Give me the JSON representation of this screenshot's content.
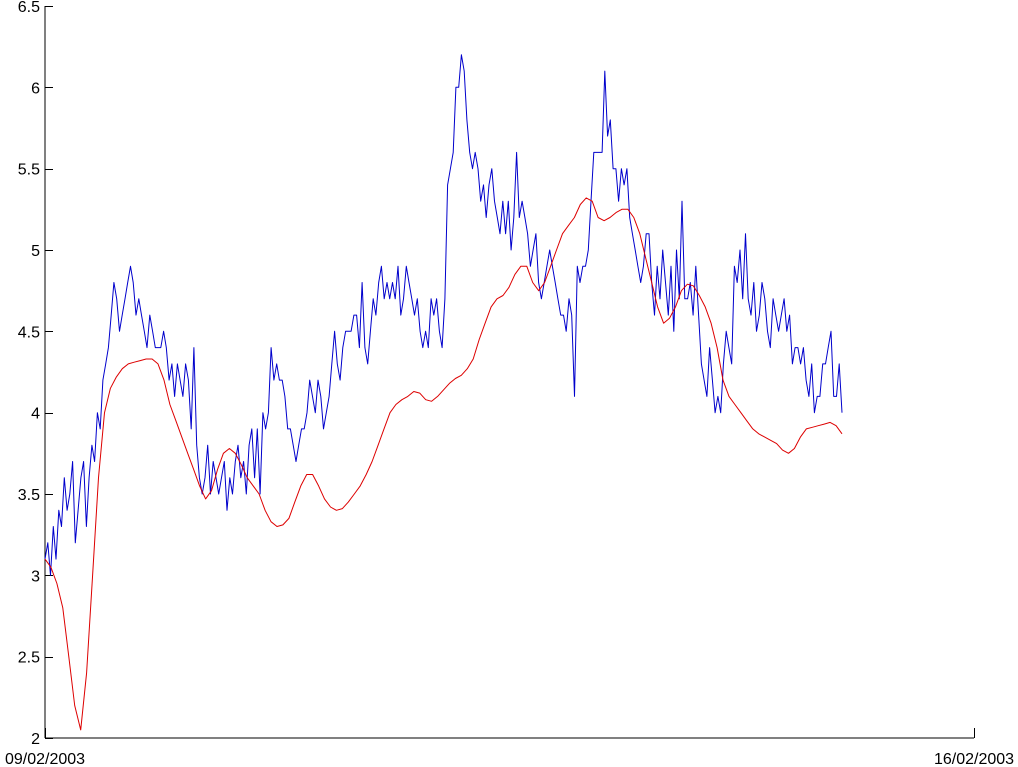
{
  "chart_data": {
    "type": "line",
    "title": "",
    "xlabel": "",
    "ylabel": "",
    "xlim": [
      "09/02/2003",
      "16/02/2003"
    ],
    "ylim": [
      2,
      6.5
    ],
    "x_ticks": [
      "09/02/2003",
      "16/02/2003"
    ],
    "y_ticks": [
      "2",
      "2.5",
      "3",
      "3.5",
      "4",
      "4.5",
      "5",
      "5.5",
      "6",
      "6.5"
    ],
    "grid": false,
    "legend": "none",
    "series": [
      {
        "color": "#0000cc",
        "values": [
          3.1,
          3.2,
          3.0,
          3.3,
          3.1,
          3.4,
          3.3,
          3.6,
          3.4,
          3.5,
          3.7,
          3.2,
          3.4,
          3.6,
          3.7,
          3.3,
          3.6,
          3.8,
          3.7,
          4.0,
          3.9,
          4.2,
          4.3,
          4.4,
          4.6,
          4.8,
          4.7,
          4.5,
          4.6,
          4.7,
          4.8,
          4.9,
          4.8,
          4.6,
          4.7,
          4.6,
          4.5,
          4.4,
          4.6,
          4.5,
          4.4,
          4.4,
          4.4,
          4.5,
          4.4,
          4.2,
          4.3,
          4.1,
          4.3,
          4.2,
          4.1,
          4.3,
          4.2,
          3.9,
          4.4,
          3.8,
          3.6,
          3.5,
          3.6,
          3.8,
          3.5,
          3.7,
          3.6,
          3.5,
          3.6,
          3.7,
          3.4,
          3.6,
          3.5,
          3.7,
          3.8,
          3.6,
          3.7,
          3.5,
          3.8,
          3.9,
          3.6,
          3.9,
          3.5,
          4.0,
          3.9,
          4.0,
          4.4,
          4.2,
          4.3,
          4.2,
          4.2,
          4.1,
          3.9,
          3.9,
          3.8,
          3.7,
          3.8,
          3.9,
          3.9,
          4.0,
          4.2,
          4.1,
          4.0,
          4.2,
          4.1,
          3.9,
          4.0,
          4.1,
          4.3,
          4.5,
          4.3,
          4.2,
          4.4,
          4.5,
          4.5,
          4.5,
          4.6,
          4.6,
          4.4,
          4.8,
          4.4,
          4.3,
          4.5,
          4.7,
          4.6,
          4.8,
          4.9,
          4.7,
          4.8,
          4.7,
          4.8,
          4.7,
          4.9,
          4.6,
          4.7,
          4.9,
          4.8,
          4.7,
          4.6,
          4.7,
          4.5,
          4.4,
          4.5,
          4.4,
          4.7,
          4.6,
          4.7,
          4.5,
          4.4,
          4.7,
          5.4,
          5.5,
          5.6,
          6.0,
          6.0,
          6.2,
          6.1,
          5.8,
          5.6,
          5.5,
          5.6,
          5.5,
          5.3,
          5.4,
          5.2,
          5.4,
          5.5,
          5.3,
          5.2,
          5.1,
          5.3,
          5.1,
          5.3,
          5.0,
          5.2,
          5.6,
          5.2,
          5.3,
          5.2,
          5.1,
          4.9,
          5.0,
          5.1,
          4.8,
          4.7,
          4.8,
          4.9,
          5.0,
          4.9,
          4.8,
          4.7,
          4.6,
          4.6,
          4.5,
          4.7,
          4.6,
          4.1,
          4.9,
          4.8,
          4.9,
          4.9,
          5.0,
          5.3,
          5.6,
          5.6,
          5.6,
          5.6,
          6.1,
          5.7,
          5.8,
          5.5,
          5.5,
          5.3,
          5.5,
          5.4,
          5.5,
          5.2,
          5.1,
          5.0,
          4.9,
          4.8,
          4.9,
          5.1,
          5.1,
          4.8,
          4.6,
          4.9,
          4.7,
          5.0,
          4.8,
          4.6,
          4.9,
          4.5,
          5.0,
          4.7,
          5.3,
          4.7,
          4.7,
          4.8,
          4.6,
          4.9,
          4.6,
          4.3,
          4.2,
          4.1,
          4.4,
          4.2,
          4.0,
          4.1,
          4.0,
          4.3,
          4.5,
          4.4,
          4.3,
          4.9,
          4.8,
          5.0,
          4.7,
          5.1,
          4.7,
          4.6,
          4.8,
          4.5,
          4.6,
          4.8,
          4.7,
          4.5,
          4.4,
          4.7,
          4.6,
          4.5,
          4.6,
          4.7,
          4.5,
          4.6,
          4.3,
          4.4,
          4.4,
          4.3,
          4.4,
          4.2,
          4.1,
          4.3,
          4.0,
          4.1,
          4.1,
          4.3,
          4.3,
          4.4,
          4.5,
          4.1,
          4.1,
          4.3,
          4.0
        ]
      },
      {
        "color": "#dd0000",
        "values": [
          3.1,
          3.05,
          2.95,
          2.8,
          2.5,
          2.2,
          2.05,
          2.4,
          3.0,
          3.6,
          4.0,
          4.15,
          4.22,
          4.27,
          4.3,
          4.31,
          4.32,
          4.33,
          4.33,
          4.3,
          4.2,
          4.05,
          3.95,
          3.85,
          3.75,
          3.65,
          3.55,
          3.47,
          3.52,
          3.65,
          3.75,
          3.78,
          3.75,
          3.68,
          3.6,
          3.55,
          3.5,
          3.4,
          3.33,
          3.3,
          3.31,
          3.35,
          3.45,
          3.55,
          3.62,
          3.62,
          3.55,
          3.47,
          3.42,
          3.4,
          3.41,
          3.45,
          3.5,
          3.55,
          3.62,
          3.7,
          3.8,
          3.9,
          4.0,
          4.05,
          4.08,
          4.1,
          4.13,
          4.12,
          4.08,
          4.07,
          4.1,
          4.14,
          4.18,
          4.21,
          4.23,
          4.27,
          4.33,
          4.45,
          4.55,
          4.65,
          4.7,
          4.72,
          4.77,
          4.85,
          4.9,
          4.9,
          4.8,
          4.75,
          4.8,
          4.9,
          5.0,
          5.1,
          5.15,
          5.2,
          5.28,
          5.32,
          5.3,
          5.2,
          5.18,
          5.2,
          5.23,
          5.25,
          5.25,
          5.2,
          5.1,
          4.95,
          4.8,
          4.65,
          4.55,
          4.58,
          4.65,
          4.75,
          4.79,
          4.78,
          4.72,
          4.65,
          4.55,
          4.4,
          4.2,
          4.1,
          4.05,
          4.0,
          3.95,
          3.9,
          3.87,
          3.85,
          3.83,
          3.81,
          3.77,
          3.75,
          3.78,
          3.85,
          3.9,
          3.91,
          3.92,
          3.93,
          3.94,
          3.92,
          3.87
        ]
      }
    ]
  }
}
